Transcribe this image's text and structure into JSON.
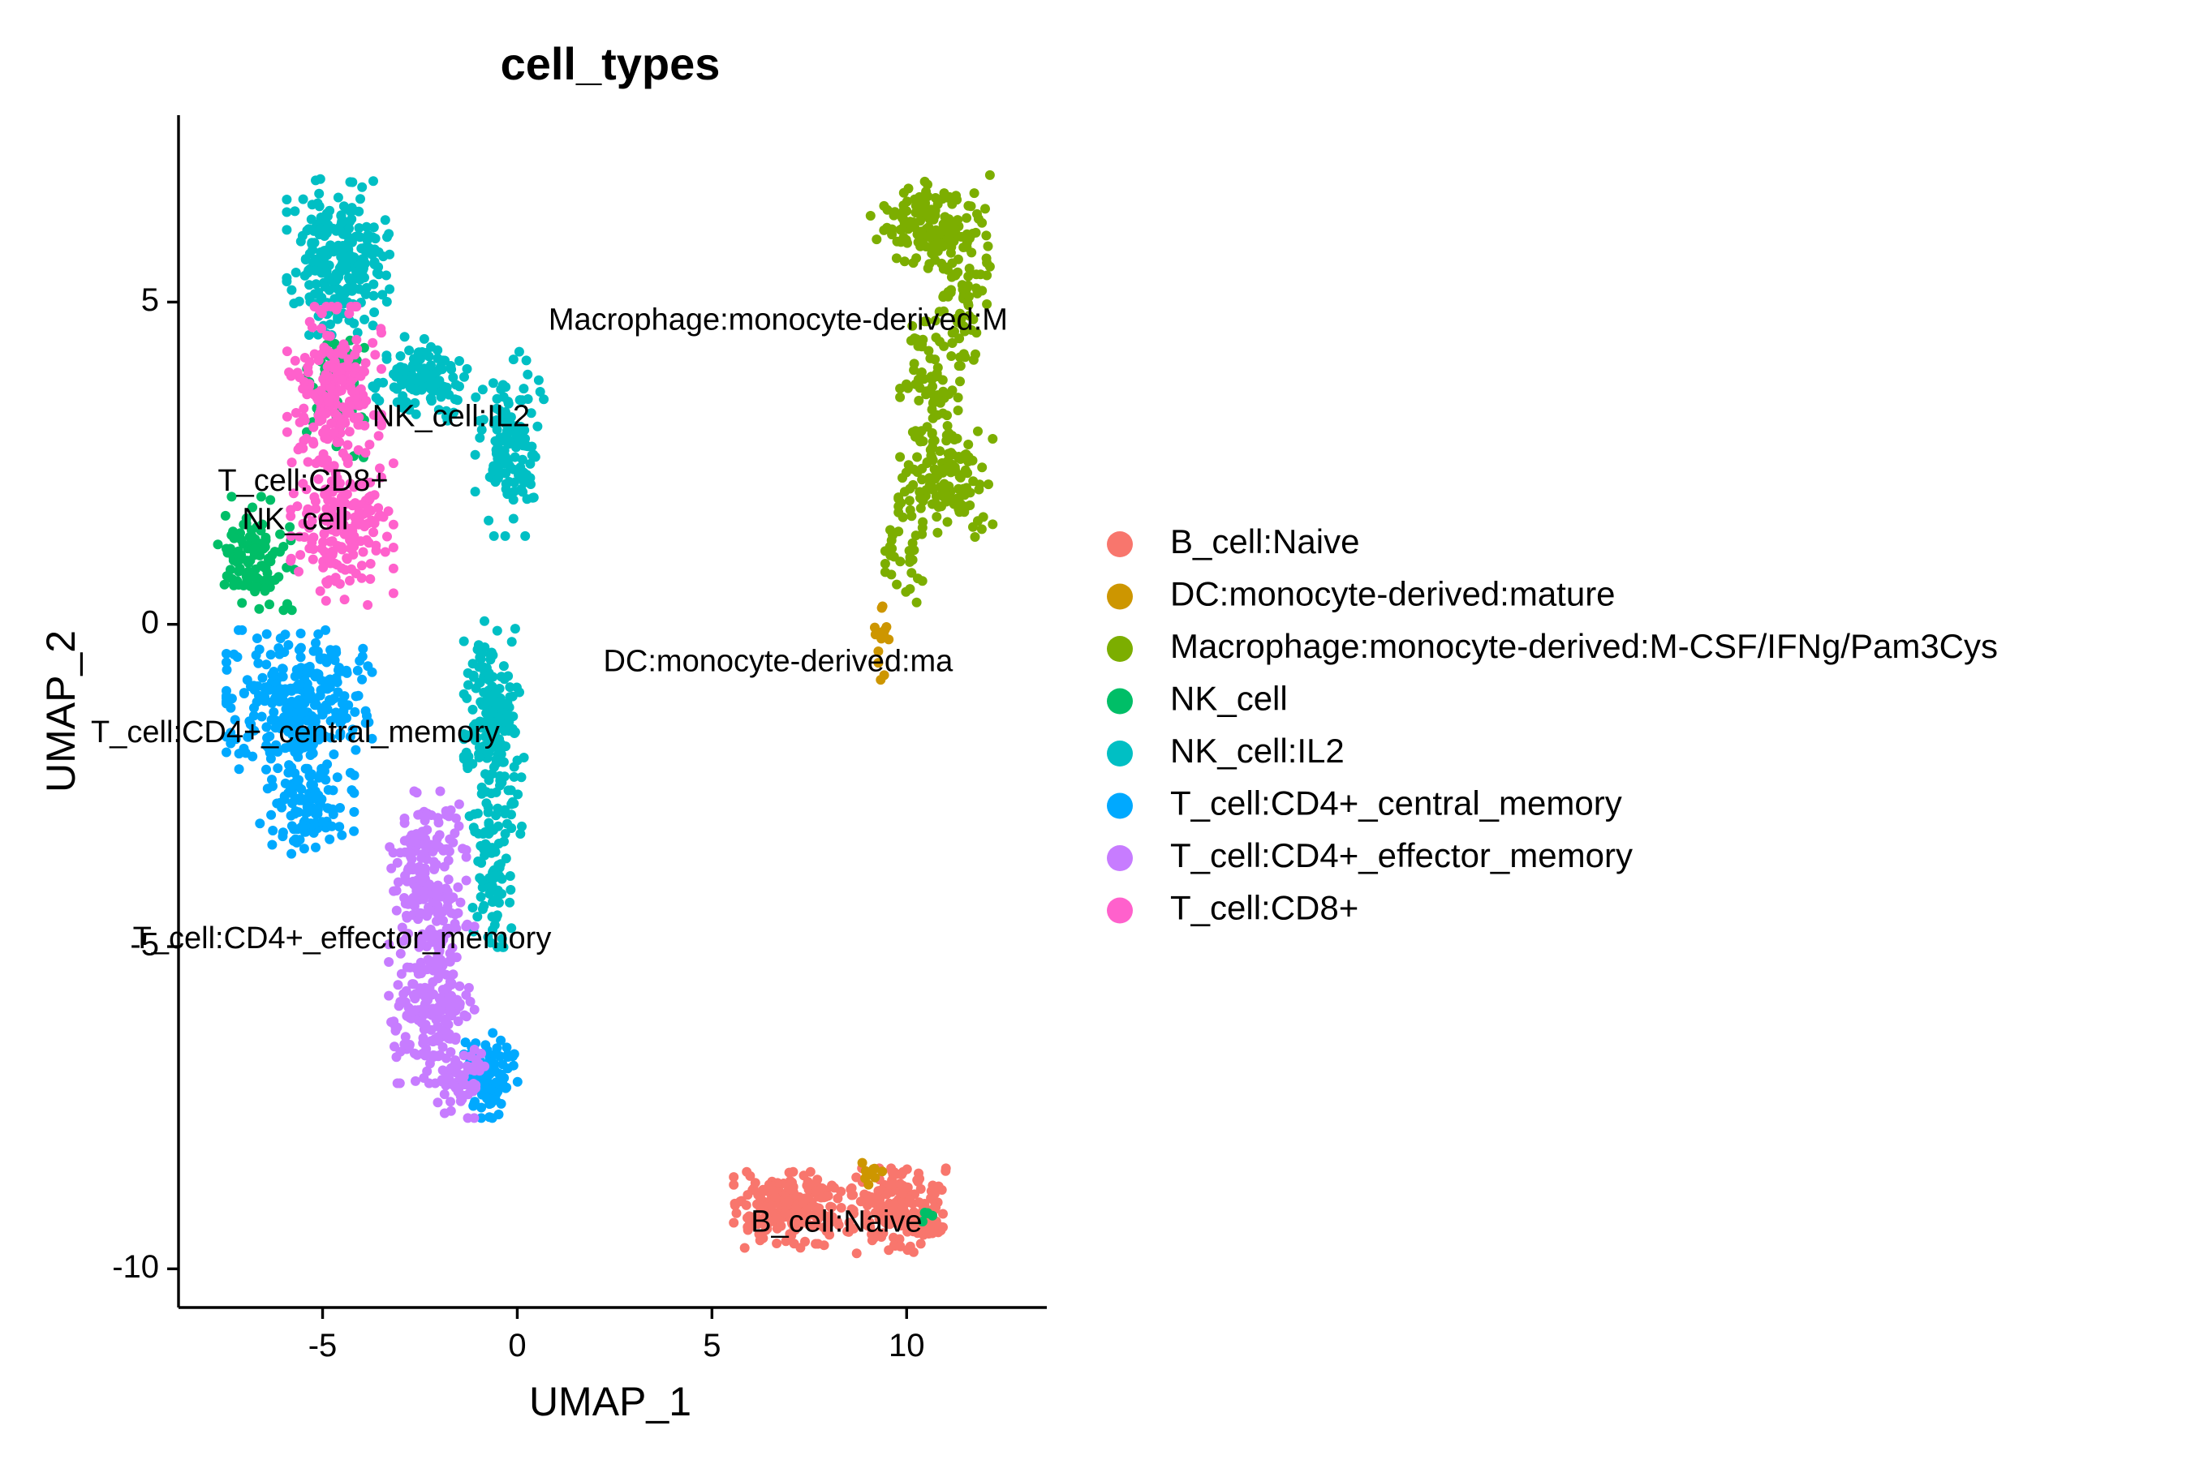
{
  "chart_data": {
    "type": "scatter",
    "title": "cell_types",
    "xlabel": "UMAP_1",
    "ylabel": "UMAP_2",
    "xlim": [
      -8.7,
      13.6
    ],
    "ylim": [
      -10.6,
      7.9
    ],
    "xticks": [
      -5,
      0,
      5,
      10
    ],
    "yticks": [
      -10,
      -5,
      0,
      5
    ],
    "xtick_labels": [
      "-5",
      "0",
      "5",
      "10"
    ],
    "ytick_labels": [
      "-10",
      "-5",
      "0",
      "5"
    ],
    "grid": false,
    "legend_position": "right",
    "series": [
      {
        "name": "B_cell:Naive",
        "color": "#F8766D",
        "cluster_label": "B_cell:Naive",
        "label_pos": [
          8.2,
          -9.3
        ],
        "regions": [
          {
            "cx": 7.1,
            "cy": -9.1,
            "rx": 1.4,
            "ry": 0.55,
            "n": 230
          },
          {
            "cx": 9.8,
            "cy": -9.1,
            "rx": 1.1,
            "ry": 0.6,
            "n": 190
          }
        ]
      },
      {
        "name": "DC:monocyte-derived:mature",
        "color": "#CD9600",
        "cluster_label": "DC:monocyte-derived:ma",
        "label_pos": [
          6.7,
          -0.6
        ],
        "regions": [
          {
            "cx": 9.4,
            "cy": -0.2,
            "rx": 0.2,
            "ry": 0.6,
            "n": 14
          },
          {
            "cx": 9.1,
            "cy": -8.6,
            "rx": 0.35,
            "ry": 0.35,
            "n": 10
          }
        ]
      },
      {
        "name": "Macrophage:monocyte-derived:M-CSF/IFNg/Pam3Cys",
        "color": "#7CAE00",
        "cluster_label": "Macrophage:monocyte-derived:M",
        "label_pos": [
          6.7,
          4.7
        ],
        "regions": [
          {
            "cx": 10.6,
            "cy": 6.2,
            "rx": 1.4,
            "ry": 0.7,
            "n": 160
          },
          {
            "cx": 11.4,
            "cy": 5.0,
            "rx": 0.6,
            "ry": 0.9,
            "n": 60
          },
          {
            "cx": 10.6,
            "cy": 3.6,
            "rx": 0.7,
            "ry": 1.0,
            "n": 80
          },
          {
            "cx": 11.0,
            "cy": 2.2,
            "rx": 1.1,
            "ry": 0.8,
            "n": 140
          },
          {
            "cx": 10.0,
            "cy": 1.0,
            "rx": 0.5,
            "ry": 0.6,
            "n": 30
          }
        ]
      },
      {
        "name": "NK_cell",
        "color": "#00BE67",
        "cluster_label": "NK_cell",
        "label_pos": [
          -5.7,
          1.6
        ],
        "regions": [
          {
            "cx": -6.7,
            "cy": 1.1,
            "rx": 0.9,
            "ry": 0.8,
            "n": 110
          },
          {
            "cx": -4.7,
            "cy": 3.8,
            "rx": 0.7,
            "ry": 1.1,
            "n": 60
          },
          {
            "cx": 10.5,
            "cy": -9.2,
            "rx": 0.2,
            "ry": 0.15,
            "n": 5
          }
        ]
      },
      {
        "name": "NK_cell:IL2",
        "color": "#00BFC4",
        "cluster_label": "NK_cell:IL2",
        "label_pos": [
          -1.7,
          3.2
        ],
        "regions": [
          {
            "cx": -4.6,
            "cy": 5.7,
            "rx": 1.2,
            "ry": 1.1,
            "n": 260
          },
          {
            "cx": -2.5,
            "cy": 3.8,
            "rx": 1.1,
            "ry": 0.6,
            "n": 120
          },
          {
            "cx": -0.2,
            "cy": 2.8,
            "rx": 0.8,
            "ry": 1.3,
            "n": 130
          },
          {
            "cx": -0.6,
            "cy": -1.6,
            "rx": 0.7,
            "ry": 1.5,
            "n": 200
          },
          {
            "cx": -0.7,
            "cy": -3.8,
            "rx": 0.5,
            "ry": 1.1,
            "n": 80
          }
        ]
      },
      {
        "name": "T_cell:CD4+_central_memory",
        "color": "#00A9FF",
        "cluster_label": "T_cell:CD4+_central_memory",
        "label_pos": [
          -5.7,
          -1.7
        ],
        "regions": [
          {
            "cx": -5.6,
            "cy": -1.3,
            "rx": 1.7,
            "ry": 1.1,
            "n": 320
          },
          {
            "cx": -5.4,
            "cy": -2.9,
            "rx": 1.1,
            "ry": 0.6,
            "n": 100
          },
          {
            "cx": -0.7,
            "cy": -7.0,
            "rx": 0.7,
            "ry": 0.6,
            "n": 90
          }
        ]
      },
      {
        "name": "T_cell:CD4+_effector_memory",
        "color": "#C77CFF",
        "cluster_label": "T_cell:CD4+_effector_memory",
        "label_pos": [
          -4.5,
          -4.9
        ],
        "regions": [
          {
            "cx": -2.3,
            "cy": -3.8,
            "rx": 0.9,
            "ry": 1.1,
            "n": 170
          },
          {
            "cx": -2.2,
            "cy": -5.8,
            "rx": 1.0,
            "ry": 1.2,
            "n": 230
          },
          {
            "cx": -1.5,
            "cy": -7.0,
            "rx": 0.6,
            "ry": 0.6,
            "n": 60
          }
        ]
      },
      {
        "name": "T_cell:CD8+",
        "color": "#FF61CC",
        "cluster_label": "T_cell:CD8+",
        "label_pos": [
          -5.5,
          2.2
        ],
        "regions": [
          {
            "cx": -4.7,
            "cy": 3.5,
            "rx": 1.1,
            "ry": 1.3,
            "n": 220
          },
          {
            "cx": -4.5,
            "cy": 1.4,
            "rx": 1.2,
            "ry": 1.0,
            "n": 170
          }
        ]
      }
    ]
  }
}
